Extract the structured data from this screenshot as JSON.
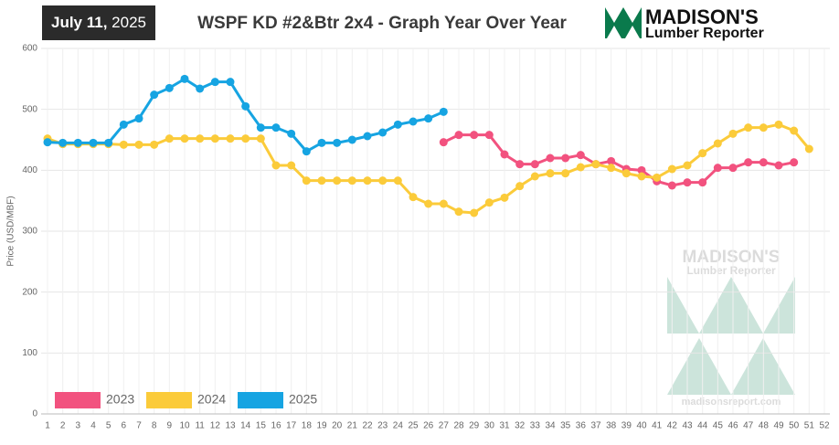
{
  "header": {
    "date_bold": "July 11,",
    "date_year": "2025"
  },
  "logo": {
    "name": "MADISON'S",
    "subtitle": "Lumber Reporter"
  },
  "watermark": {
    "name": "MADISON'S",
    "subtitle": "Lumber Reporter",
    "url": "madisonsreport.com"
  },
  "chart_data": {
    "type": "line",
    "title": "WSPF KD #2&Btr 2x4 - Graph Year Over Year",
    "y_label": "Price (USD/MBF)",
    "x": [
      1,
      2,
      3,
      4,
      5,
      6,
      7,
      8,
      9,
      10,
      11,
      12,
      13,
      14,
      15,
      16,
      17,
      18,
      19,
      20,
      21,
      22,
      23,
      24,
      25,
      26,
      27,
      28,
      29,
      30,
      31,
      32,
      33,
      34,
      35,
      36,
      37,
      38,
      39,
      40,
      41,
      42,
      43,
      44,
      45,
      46,
      47,
      48,
      49,
      50,
      51,
      52
    ],
    "xlim": [
      1,
      52
    ],
    "xticks": [
      1,
      2,
      3,
      4,
      5,
      6,
      7,
      8,
      9,
      10,
      11,
      12,
      13,
      14,
      15,
      16,
      17,
      18,
      19,
      20,
      21,
      22,
      23,
      24,
      25,
      26,
      27,
      28,
      29,
      30,
      31,
      32,
      33,
      34,
      35,
      36,
      37,
      38,
      39,
      40,
      41,
      42,
      43,
      44,
      45,
      46,
      47,
      48,
      49,
      50,
      51,
      52
    ],
    "ylim": [
      0,
      600
    ],
    "yticks": [
      0,
      100,
      200,
      300,
      400,
      500,
      600
    ],
    "grid": true,
    "legend": "bottom-left",
    "series": [
      {
        "name": "2023",
        "color": "#f2527f",
        "values": [
          null,
          null,
          null,
          null,
          null,
          null,
          null,
          null,
          null,
          null,
          null,
          null,
          null,
          null,
          null,
          null,
          null,
          null,
          null,
          null,
          null,
          null,
          null,
          null,
          null,
          null,
          446,
          458,
          458,
          458,
          426,
          410,
          410,
          420,
          420,
          425,
          410,
          415,
          402,
          400,
          382,
          375,
          380,
          380,
          404,
          404,
          413,
          413,
          408,
          413,
          null,
          null
        ]
      },
      {
        "name": "2024",
        "color": "#fbcb3a",
        "values": [
          452,
          443,
          443,
          443,
          443,
          442,
          442,
          442,
          452,
          452,
          452,
          452,
          452,
          452,
          452,
          408,
          408,
          383,
          383,
          383,
          383,
          383,
          383,
          383,
          356,
          345,
          345,
          332,
          330,
          347,
          355,
          374,
          390,
          395,
          395,
          405,
          410,
          404,
          395,
          390,
          388,
          402,
          408,
          428,
          444,
          460,
          470,
          470,
          475,
          465,
          435,
          null
        ]
      },
      {
        "name": "2025",
        "color": "#16a4e2",
        "values": [
          446,
          445,
          445,
          445,
          445,
          475,
          485,
          524,
          535,
          550,
          534,
          545,
          545,
          505,
          470,
          470,
          460,
          431,
          445,
          445,
          450,
          456,
          462,
          475,
          480,
          485,
          496,
          null,
          null,
          null,
          null,
          null,
          null,
          null,
          null,
          null,
          null,
          null,
          null,
          null,
          null,
          null,
          null,
          null,
          null,
          null,
          null,
          null,
          null,
          null,
          null,
          null
        ]
      }
    ]
  }
}
